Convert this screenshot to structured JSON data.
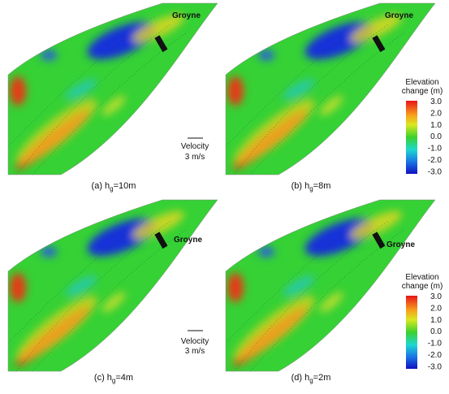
{
  "panels": [
    {
      "groyne": "Groyne",
      "caption": {
        "prefix": "(a) h",
        "sub": "g",
        "suffix": "=10m"
      }
    },
    {
      "groyne": "Groyne",
      "caption": {
        "prefix": "(b) h",
        "sub": "g",
        "suffix": "=8m"
      }
    },
    {
      "groyne": "Groyne",
      "caption": {
        "prefix": "(c) h",
        "sub": "g",
        "suffix": "=4m"
      }
    },
    {
      "groyne": "Groyne",
      "caption": {
        "prefix": "(d) h",
        "sub": "g",
        "suffix": "=2m"
      }
    }
  ],
  "velocity": {
    "label": "Velocity",
    "scale": "3 m/s"
  },
  "colorbar": {
    "title_line1": "Elevation",
    "title_line2": "change (m)",
    "ticks": [
      "3.0",
      "2.0",
      "1.0",
      "0.0",
      "-1.0",
      "-2.0",
      "-3.0"
    ]
  }
}
